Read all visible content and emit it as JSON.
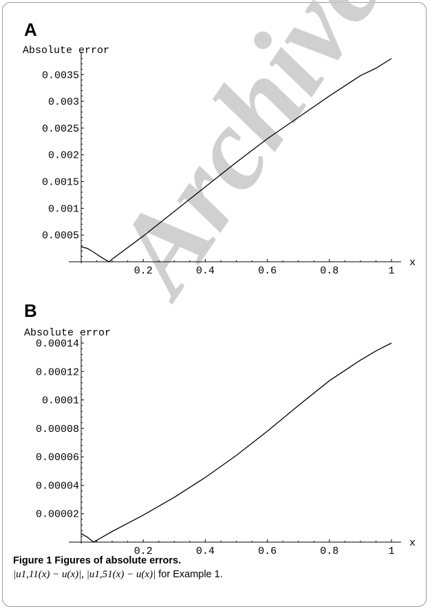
{
  "watermark": "Archive",
  "chart_data": [
    {
      "type": "line",
      "panel": "A",
      "ylabel": "Absolute error",
      "xlabel": "x",
      "xlim": [
        0,
        1
      ],
      "ylim": [
        0,
        0.0038
      ],
      "xticks": [
        0.2,
        0.4,
        0.6,
        0.8,
        1
      ],
      "xtick_labels": [
        "0.2",
        "0.4",
        "0.6",
        "0.8",
        "1"
      ],
      "yticks": [
        0.0005,
        0.001,
        0.0015,
        0.002,
        0.0025,
        0.003,
        0.0035
      ],
      "ytick_labels": [
        "0.0005",
        "0.001",
        "0.0015",
        "0.002",
        "0.0025",
        "0.003",
        "0.0035"
      ],
      "series": [
        {
          "x": [
            0,
            0.02,
            0.04,
            0.06,
            0.08,
            0.09,
            0.1,
            0.2,
            0.3,
            0.4,
            0.5,
            0.6,
            0.7,
            0.8,
            0.9,
            0.95,
            1
          ],
          "y": [
            0.00028,
            0.00025,
            0.00018,
            0.0001,
            3e-05,
            0.0,
            5e-05,
            0.00048,
            0.00094,
            0.0014,
            0.00186,
            0.0023,
            0.0027,
            0.0031,
            0.00348,
            0.00362,
            0.0038
          ]
        }
      ]
    },
    {
      "type": "line",
      "panel": "B",
      "ylabel": "Absolute error",
      "xlabel": "x",
      "xlim": [
        0,
        1
      ],
      "ylim": [
        0,
        0.00014
      ],
      "xticks": [
        0.2,
        0.4,
        0.6,
        0.8,
        1
      ],
      "xtick_labels": [
        "0.2",
        "0.4",
        "0.6",
        "0.8",
        "1"
      ],
      "yticks": [
        2e-05,
        4e-05,
        6e-05,
        8e-05,
        0.0001,
        0.00012,
        0.00014
      ],
      "ytick_labels": [
        "0.00002",
        "0.00004",
        "0.00006",
        "0.00008",
        "0.0001",
        "0.00012",
        "0.00014"
      ],
      "series": [
        {
          "x": [
            0,
            0.02,
            0.04,
            0.06,
            0.1,
            0.2,
            0.3,
            0.4,
            0.5,
            0.6,
            0.7,
            0.8,
            0.9,
            0.95,
            1
          ],
          "y": [
            6e-06,
            3.5e-06,
            0.0,
            2.5e-06,
            7.5e-06,
            1.9e-05,
            3.15e-05,
            4.55e-05,
            6.1e-05,
            7.8e-05,
            9.6e-05,
            0.0001135,
            0.000128,
            0.0001345,
            0.00014
          ]
        }
      ]
    }
  ],
  "caption": {
    "title": "Figure 1 Figures of absolute errors.",
    "body_math": "|u1,11(x) − u(x)|,  |u1,51(x) − u(x)|",
    "body_suffix": " for Example 1."
  }
}
